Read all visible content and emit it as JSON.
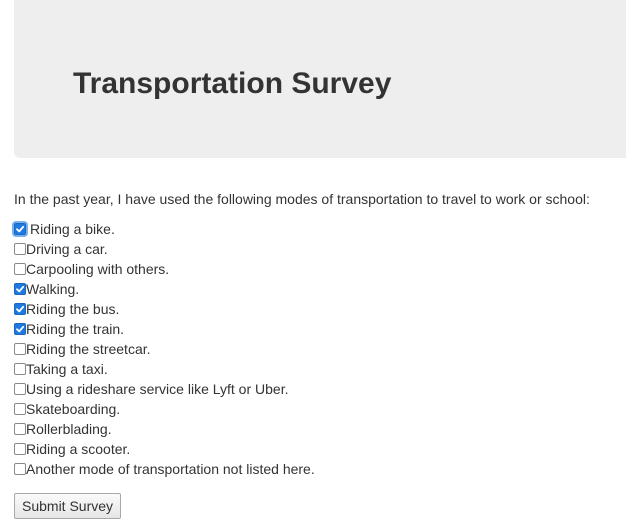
{
  "header": {
    "title": "Transportation Survey"
  },
  "survey": {
    "prompt": "In the past year, I have used the following modes of transportation to travel to work or school:",
    "options": [
      {
        "label": "Riding a bike.",
        "checked": true
      },
      {
        "label": "Driving a car.",
        "checked": false
      },
      {
        "label": "Carpooling with others.",
        "checked": false
      },
      {
        "label": "Walking.",
        "checked": true
      },
      {
        "label": "Riding the bus.",
        "checked": true
      },
      {
        "label": "Riding the train.",
        "checked": true
      },
      {
        "label": "Riding the streetcar.",
        "checked": false
      },
      {
        "label": "Taking a taxi.",
        "checked": false
      },
      {
        "label": "Using a rideshare service like Lyft or Uber.",
        "checked": false
      },
      {
        "label": "Skateboarding.",
        "checked": false
      },
      {
        "label": "Rollerblading.",
        "checked": false
      },
      {
        "label": "Riding a scooter.",
        "checked": false
      },
      {
        "label": "Another mode of transportation not listed here.",
        "checked": false
      }
    ],
    "submit_label": "Submit Survey"
  },
  "colors": {
    "header_bg": "#eeeeee",
    "checkbox_checked": "#1f7ae0",
    "text": "#333333"
  }
}
